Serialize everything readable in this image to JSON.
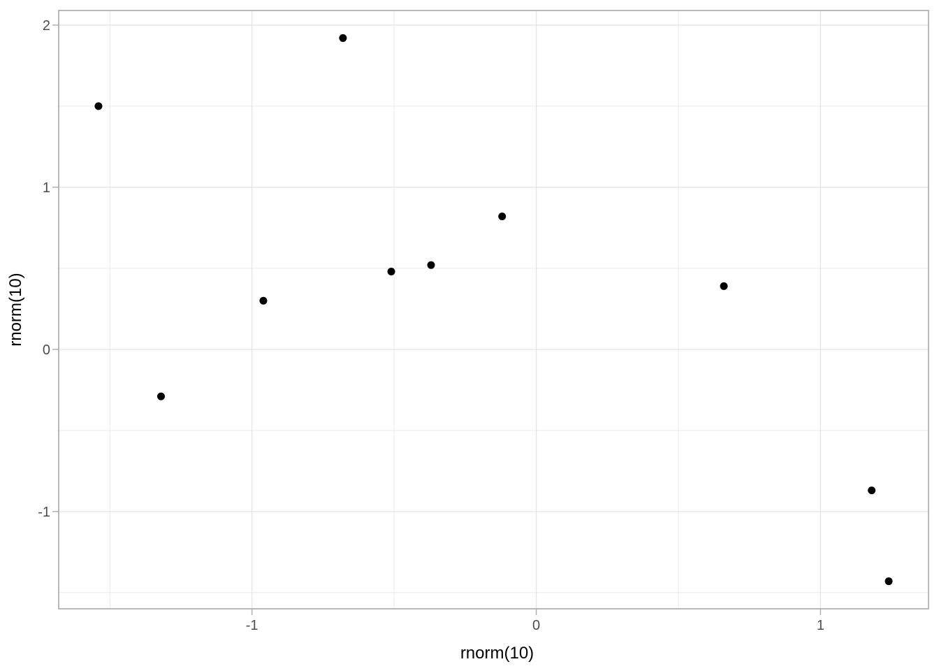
{
  "figure": {
    "background": "#ffffff"
  },
  "chart_data": {
    "type": "scatter",
    "title": "",
    "xlabel": "rnorm(10)",
    "ylabel": "rnorm(10)",
    "points": [
      {
        "x": -1.54,
        "y": 1.5
      },
      {
        "x": -0.68,
        "y": 1.92
      },
      {
        "x": -1.32,
        "y": -0.29
      },
      {
        "x": -0.96,
        "y": 0.3
      },
      {
        "x": -0.51,
        "y": 0.48
      },
      {
        "x": -0.37,
        "y": 0.52
      },
      {
        "x": -0.12,
        "y": 0.82
      },
      {
        "x": 0.66,
        "y": 0.39
      },
      {
        "x": 1.18,
        "y": -0.87
      },
      {
        "x": 1.24,
        "y": -1.43
      }
    ],
    "xlim": [
      -1.68,
      1.38
    ],
    "ylim": [
      -1.6,
      2.09
    ],
    "x_major_ticks": [
      -1,
      0,
      1
    ],
    "x_tick_labels": [
      "-1",
      "0",
      "1"
    ],
    "x_minor_ticks": [
      -1.5,
      -0.5,
      0.5
    ],
    "y_major_ticks": [
      -1,
      0,
      1,
      2
    ],
    "y_tick_labels": [
      "-1",
      "0",
      "1",
      "2"
    ],
    "y_minor_ticks": [
      -1.5,
      -0.5,
      0.5,
      1.5
    ],
    "grid": true,
    "legend": "none",
    "style": {
      "point_color": "#000000",
      "point_radius_px": 5.5,
      "grid_major_color": "#e2e2e2",
      "grid_minor_color": "#ebebeb",
      "panel_border_color": "#b0b0b0",
      "panel_background": "#ffffff",
      "tick_mark_color": "#b0b0b0",
      "tick_label_color": "#4d4d4d",
      "axis_title_color": "#000000"
    }
  }
}
